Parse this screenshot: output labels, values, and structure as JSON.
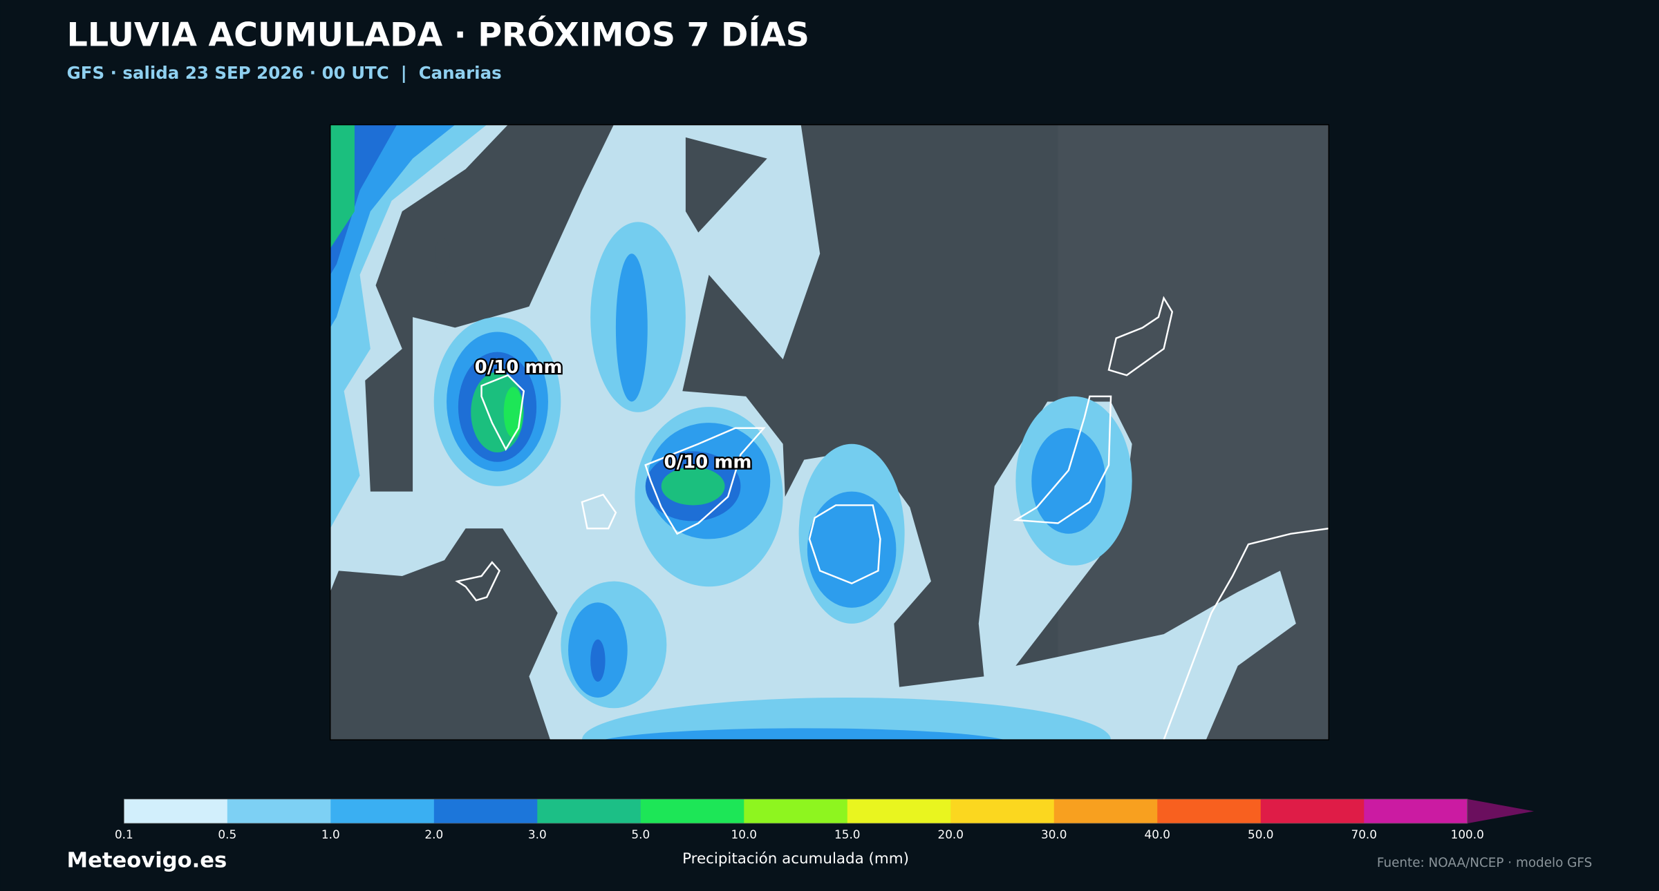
{
  "header": {
    "title": "LLUVIA ACUMULADA · PRÓXIMOS 7 DÍAS",
    "subtitle": "GFS · salida 23 SEP 2026 · 00 UTC  |  Canarias"
  },
  "map": {
    "labels": [
      "0/10 mm",
      "0/10 mm"
    ]
  },
  "colorbar": {
    "title": "Precipitación acumulada (mm)",
    "ticks": [
      "0.1",
      "0.5",
      "1.0",
      "2.0",
      "3.0",
      "5.0",
      "10.0",
      "15.0",
      "20.0",
      "30.0",
      "40.0",
      "50.0",
      "70.0",
      "100.0"
    ],
    "colors": [
      "#d2effc",
      "#7dd0f4",
      "#3aaff2",
      "#1c76da",
      "#1cbf86",
      "#1de657",
      "#8ef51f",
      "#e9f51f",
      "#fbd71f",
      "#f8a01f",
      "#f8601f",
      "#df1c47",
      "#cb1ba2",
      "#6b0f5e"
    ]
  },
  "footer": {
    "brand": "Meteovigo.es",
    "source": "Fuente: NOAA/NCEP · modelo GFS"
  }
}
